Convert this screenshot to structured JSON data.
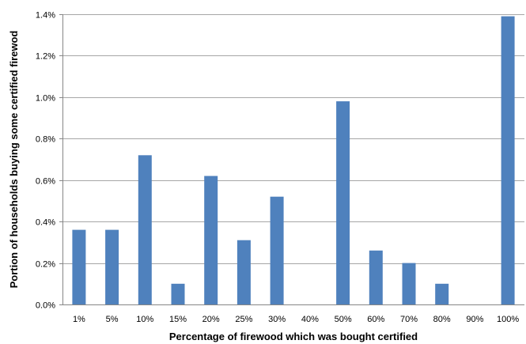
{
  "chart_data": {
    "type": "bar",
    "title": "",
    "xlabel": "Percentage  of  firewood which was bought  certified",
    "ylabel": "Portion of households buying some certified firewod",
    "categories": [
      "1%",
      "5%",
      "10%",
      "15%",
      "20%",
      "25%",
      "30%",
      "40%",
      "50%",
      "60%",
      "70%",
      "80%",
      "90%",
      "100%"
    ],
    "values": [
      0.0036,
      0.0036,
      0.0072,
      0.001,
      0.0062,
      0.0031,
      0.0052,
      0.0,
      0.0098,
      0.0026,
      0.002,
      0.001,
      0.0,
      0.0139
    ],
    "ylim": [
      0,
      0.014
    ],
    "yticks": [
      0,
      0.002,
      0.004,
      0.006,
      0.008,
      0.01,
      0.012,
      0.014
    ],
    "ytick_labels": [
      "0.0%",
      "0.2%",
      "0.4%",
      "0.6%",
      "0.8%",
      "1.0%",
      "1.2%",
      "1.4%"
    ],
    "grid": true,
    "legend": "none",
    "bar_color": "#4f81bd"
  }
}
